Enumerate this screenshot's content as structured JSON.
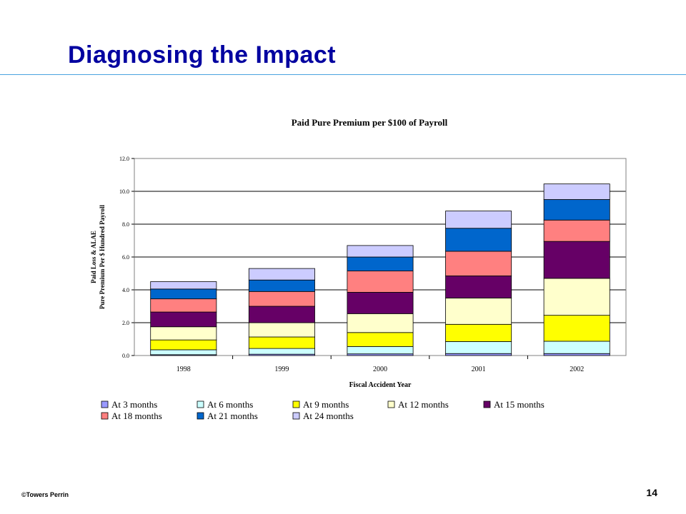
{
  "slide": {
    "title": "Diagnosing the Impact",
    "footer": "©Towers Perrin",
    "page_number": "14"
  },
  "chart_data": {
    "type": "bar",
    "stacked": true,
    "title": "Paid Pure Premium per $100 of Payroll",
    "xlabel": "Fiscal Accident Year",
    "ylabel_line1": "Paid Loss & ALAE",
    "ylabel_line2": "Pure Premium Per $ Hundred Payroll",
    "ylim": [
      0,
      12
    ],
    "yticks": [
      "0.0",
      "2.0",
      "4.0",
      "6.0",
      "8.0",
      "10.0",
      "12.0"
    ],
    "grid": true,
    "legend_position": "bottom",
    "categories": [
      "1998",
      "1999",
      "2000",
      "2001",
      "2002"
    ],
    "series": [
      {
        "name": "At 3 months",
        "color": "#9999ff",
        "values": [
          0.05,
          0.08,
          0.1,
          0.12,
          0.12
        ]
      },
      {
        "name": "At 6 months",
        "color": "#ccffff",
        "values": [
          0.3,
          0.35,
          0.45,
          0.73,
          0.75
        ]
      },
      {
        "name": "At 9 months",
        "color": "#ffff00",
        "values": [
          0.6,
          0.7,
          0.85,
          1.05,
          1.58
        ]
      },
      {
        "name": "At 12 months",
        "color": "#ffffcc",
        "values": [
          0.8,
          0.87,
          1.15,
          1.6,
          2.25
        ]
      },
      {
        "name": "At 15 months",
        "color": "#660066",
        "values": [
          0.9,
          1.0,
          1.3,
          1.35,
          2.25
        ]
      },
      {
        "name": "At 18 months",
        "color": "#ff8080",
        "values": [
          0.8,
          0.9,
          1.3,
          1.5,
          1.3
        ]
      },
      {
        "name": "At 21 months",
        "color": "#0066cc",
        "values": [
          0.6,
          0.7,
          0.85,
          1.4,
          1.25
        ]
      },
      {
        "name": "At 24 months",
        "color": "#ccccff",
        "values": [
          0.45,
          0.7,
          0.7,
          1.05,
          0.95
        ]
      }
    ]
  }
}
